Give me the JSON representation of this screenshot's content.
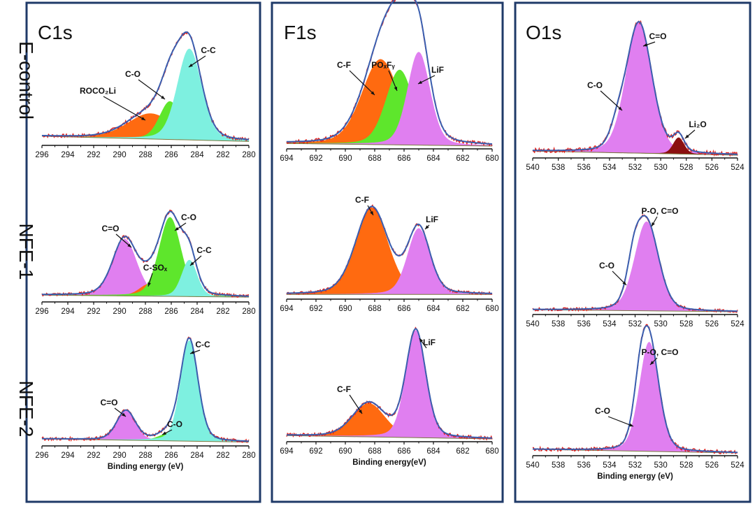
{
  "row_labels": [
    "E-control",
    "NFE-1",
    "NFE-2"
  ],
  "column_titles": [
    "C1s",
    "F1s",
    "O1s"
  ],
  "x_axis_label": "Binding energy (eV)",
  "x_axis_label_f1s": "Binding energy(eV)",
  "colors": {
    "frame": "#1f3a68",
    "envelope": "#3a5fb0",
    "raw": "#e0201b",
    "orange": "#ff6a10",
    "green": "#5ee62c",
    "cyan": "#7ef0e0",
    "magenta": "#e07ff0",
    "darkred": "#8b1010"
  },
  "chart_data": [
    {
      "type": "area",
      "panel": "C1s-E-control",
      "title": "C1s",
      "row": "E-control",
      "xlim": [
        296,
        280
      ],
      "x_ticks": [
        296,
        294,
        292,
        290,
        288,
        286,
        284,
        282,
        280
      ],
      "xlabel": "",
      "components": [
        {
          "name": "ROCO2Li",
          "label": "ROCO₂Li",
          "center": 287.6,
          "amplitude": 0.22,
          "fwhm": 4.2,
          "color": "orange"
        },
        {
          "name": "C-O",
          "label": "C-O",
          "center": 286.1,
          "amplitude": 0.33,
          "fwhm": 1.9,
          "color": "green"
        },
        {
          "name": "C-C",
          "label": "C-C",
          "center": 284.6,
          "amplitude": 0.79,
          "fwhm": 2.2,
          "color": "cyan"
        }
      ],
      "background": [
        0.055,
        0.01
      ]
    },
    {
      "type": "area",
      "panel": "F1s-E-control",
      "title": "F1s",
      "row": "E-control",
      "xlim": [
        694,
        680
      ],
      "x_ticks": [
        694,
        692,
        690,
        688,
        686,
        684,
        682,
        680
      ],
      "xlabel": "",
      "components": [
        {
          "name": "C-F",
          "label": "C-F",
          "center": 687.6,
          "amplitude": 0.66,
          "fwhm": 3.0,
          "color": "orange"
        },
        {
          "name": "POxFy",
          "label": "POₓFᵧ",
          "center": 686.3,
          "amplitude": 0.58,
          "fwhm": 2.2,
          "color": "green"
        },
        {
          "name": "LiF",
          "label": "LiF",
          "center": 685.0,
          "amplitude": 0.72,
          "fwhm": 1.8,
          "color": "magenta"
        }
      ],
      "background": [
        0.02,
        0.0
      ]
    },
    {
      "type": "area",
      "panel": "O1s-E-control",
      "title": "O1s",
      "row": "E-control",
      "xlim": [
        540,
        524
      ],
      "x_ticks": [
        540,
        538,
        536,
        534,
        532,
        530,
        528,
        526,
        524
      ],
      "xlabel": "",
      "components": [
        {
          "name": "C-O",
          "label": "C-O",
          "center": 533.4,
          "amplitude": 0.1,
          "fwhm": 1.3,
          "color": "green"
        },
        {
          "name": "C=O",
          "label": "C=O",
          "center": 531.7,
          "amplitude": 0.96,
          "fwhm": 2.4,
          "color": "magenta"
        },
        {
          "name": "Li2O",
          "label": "Li₂O",
          "center": 528.6,
          "amplitude": 0.12,
          "fwhm": 1.0,
          "color": "darkred"
        }
      ],
      "background": [
        0.03,
        0.0
      ]
    },
    {
      "type": "area",
      "panel": "C1s-NFE-1",
      "row": "NFE-1",
      "xlim": [
        296,
        280
      ],
      "x_ticks": [
        296,
        294,
        292,
        290,
        288,
        286,
        284,
        282,
        280
      ],
      "xlabel": "",
      "components": [
        {
          "name": "C=O",
          "label": "C=O",
          "center": 289.6,
          "amplitude": 0.56,
          "fwhm": 2.2,
          "color": "magenta"
        },
        {
          "name": "C-SOx",
          "label": "C-SOₓ",
          "center": 287.7,
          "amplitude": 0.12,
          "fwhm": 1.8,
          "color": "orange"
        },
        {
          "name": "C-O",
          "label": "C-O",
          "center": 286.1,
          "amplitude": 0.78,
          "fwhm": 2.0,
          "color": "green"
        },
        {
          "name": "C-C",
          "label": "C-C",
          "center": 284.6,
          "amplitude": 0.36,
          "fwhm": 1.4,
          "color": "cyan"
        }
      ],
      "background": [
        0.04,
        0.02
      ]
    },
    {
      "type": "area",
      "panel": "F1s-NFE-1",
      "row": "NFE-1",
      "xlim": [
        694,
        680
      ],
      "x_ticks": [
        694,
        692,
        690,
        688,
        686,
        684,
        682,
        680
      ],
      "xlabel": "",
      "components": [
        {
          "name": "C-F",
          "label": "C-F",
          "center": 688.2,
          "amplitude": 0.92,
          "fwhm": 2.6,
          "color": "orange"
        },
        {
          "name": "LiF",
          "label": "LiF",
          "center": 685.0,
          "amplitude": 0.7,
          "fwhm": 1.8,
          "color": "magenta"
        }
      ],
      "background": [
        0.02,
        0.02
      ]
    },
    {
      "type": "area",
      "panel": "O1s-NFE-1",
      "row": "NFE-1",
      "xlim": [
        540,
        524
      ],
      "x_ticks": [
        540,
        538,
        536,
        534,
        532,
        530,
        528,
        526,
        524
      ],
      "xlabel": "",
      "components": [
        {
          "name": "C-O",
          "label": "C-O",
          "center": 532.1,
          "amplitude": 0.26,
          "fwhm": 1.2,
          "color": "green"
        },
        {
          "name": "P-O, C=O",
          "label": "P-O, C=O",
          "center": 531.1,
          "amplitude": 0.88,
          "fwhm": 2.2,
          "color": "magenta"
        }
      ],
      "background": [
        0.02,
        0.0
      ]
    },
    {
      "type": "area",
      "panel": "C1s-NFE-2",
      "row": "NFE-2",
      "xlim": [
        296,
        280
      ],
      "x_ticks": [
        296,
        294,
        292,
        290,
        288,
        286,
        284,
        282,
        280
      ],
      "xlabel": "Binding energy (eV)",
      "components": [
        {
          "name": "C=O",
          "label": "C=O",
          "center": 289.5,
          "amplitude": 0.28,
          "fwhm": 1.7,
          "color": "magenta"
        },
        {
          "name": "C-O",
          "label": "C-O",
          "center": 286.0,
          "amplitude": 0.08,
          "fwhm": 2.0,
          "color": "green"
        },
        {
          "name": "C-C",
          "label": "C-C",
          "center": 284.6,
          "amplitude": 0.96,
          "fwhm": 1.6,
          "color": "cyan"
        }
      ],
      "background": [
        0.04,
        0.01
      ]
    },
    {
      "type": "area",
      "panel": "F1s-NFE-2",
      "row": "NFE-2",
      "xlim": [
        694,
        680
      ],
      "x_ticks": [
        694,
        692,
        690,
        688,
        686,
        684,
        682,
        680
      ],
      "xlabel": "Binding energy(eV)",
      "components": [
        {
          "name": "C-F",
          "label": "C-F",
          "center": 688.4,
          "amplitude": 0.3,
          "fwhm": 2.6,
          "color": "orange"
        },
        {
          "name": "LiF",
          "label": "LiF",
          "center": 685.2,
          "amplitude": 0.96,
          "fwhm": 1.6,
          "color": "magenta"
        }
      ],
      "background": [
        0.03,
        0.0
      ]
    },
    {
      "type": "area",
      "panel": "O1s-NFE-2",
      "row": "NFE-2",
      "xlim": [
        540,
        524
      ],
      "x_ticks": [
        540,
        538,
        536,
        534,
        532,
        530,
        528,
        526,
        524
      ],
      "xlabel": "Binding energy (eV)",
      "components": [
        {
          "name": "C-O",
          "label": "C-O",
          "center": 531.6,
          "amplitude": 0.28,
          "fwhm": 1.2,
          "color": "green"
        },
        {
          "name": "P-O, C=O",
          "label": "P-O, C=O",
          "center": 530.9,
          "amplitude": 0.92,
          "fwhm": 1.8,
          "color": "magenta"
        }
      ],
      "background": [
        0.03,
        0.0
      ]
    }
  ]
}
